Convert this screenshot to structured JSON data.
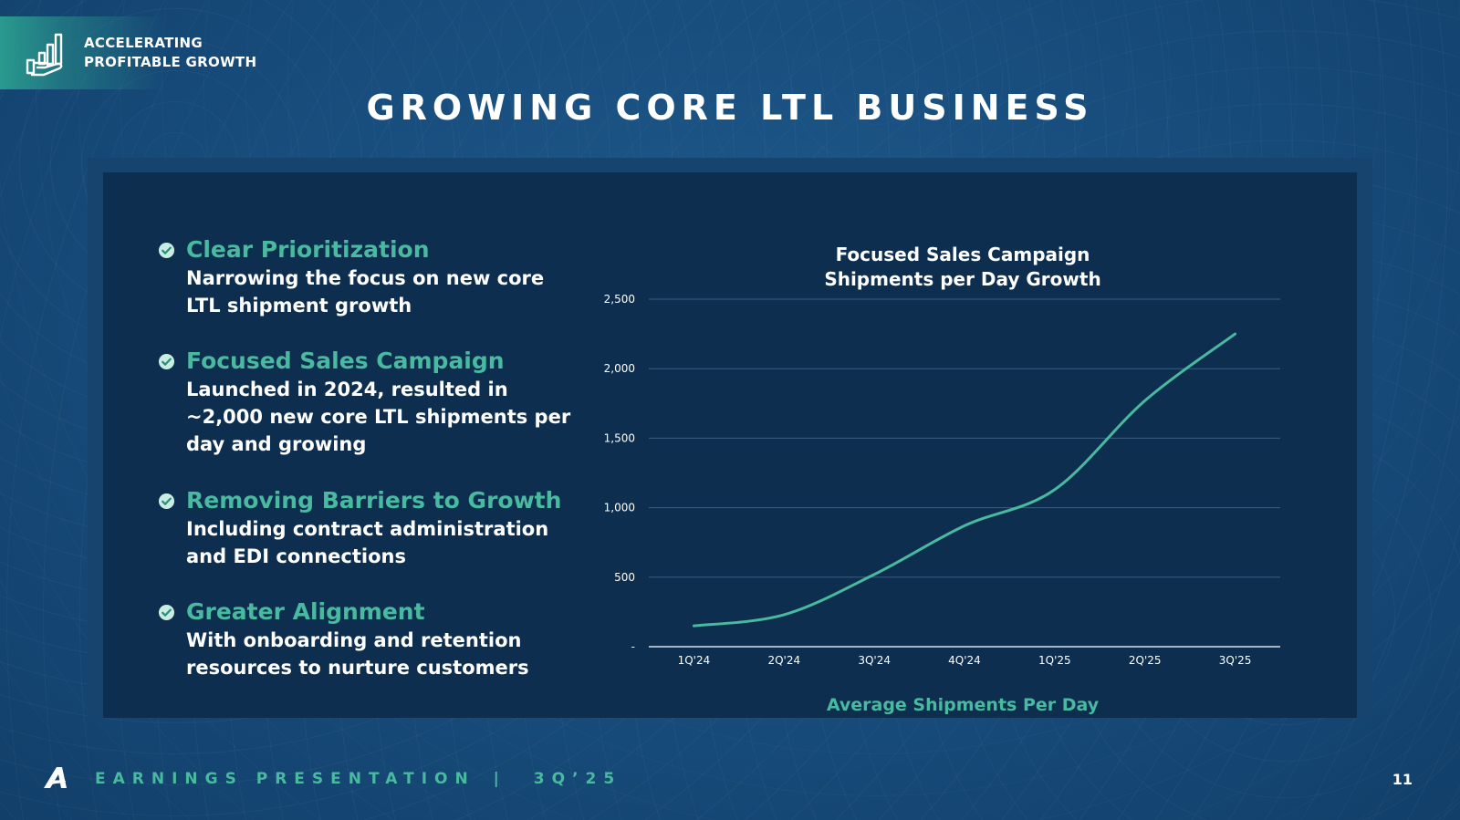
{
  "header": {
    "badge_line1": "ACCELERATING",
    "badge_line2": "PROFITABLE GROWTH",
    "title": "GROWING CORE LTL BUSINESS"
  },
  "bullets": [
    {
      "heading": "Clear Prioritization",
      "body": "Narrowing the focus on new core LTL shipment growth"
    },
    {
      "heading": "Focused Sales Campaign",
      "body": "Launched in 2024, resulted in ~2,000 new core LTL shipments per day and growing"
    },
    {
      "heading": "Removing Barriers to Growth",
      "body": "Including contract administration and EDI connections"
    },
    {
      "heading": "Greater Alignment",
      "body": "With onboarding and retention resources to nurture customers"
    }
  ],
  "chart_data": {
    "type": "line",
    "title_line1": "Focused Sales Campaign",
    "title_line2": "Shipments per Day Growth",
    "xlabel": "Average Shipments Per Day",
    "ylabel": "",
    "categories": [
      "1Q'24",
      "2Q'24",
      "3Q'24",
      "4Q'24",
      "1Q'25",
      "2Q'25",
      "3Q'25"
    ],
    "series": [
      {
        "name": "Average Shipments Per Day",
        "values": [
          150,
          230,
          520,
          870,
          1130,
          1770,
          2250
        ]
      }
    ],
    "ylim": [
      0,
      2500
    ],
    "yticks": [
      0,
      500,
      1000,
      1500,
      2000,
      2500
    ],
    "ytick_labels": [
      "-",
      "500",
      "1,000",
      "1,500",
      "2,000",
      "2,500"
    ],
    "grid": true,
    "line_color": "#49b9a0"
  },
  "footer": {
    "label": "EARNINGS PRESENTATION",
    "separator": "|",
    "period": "3Q’25",
    "page_number": "11"
  }
}
